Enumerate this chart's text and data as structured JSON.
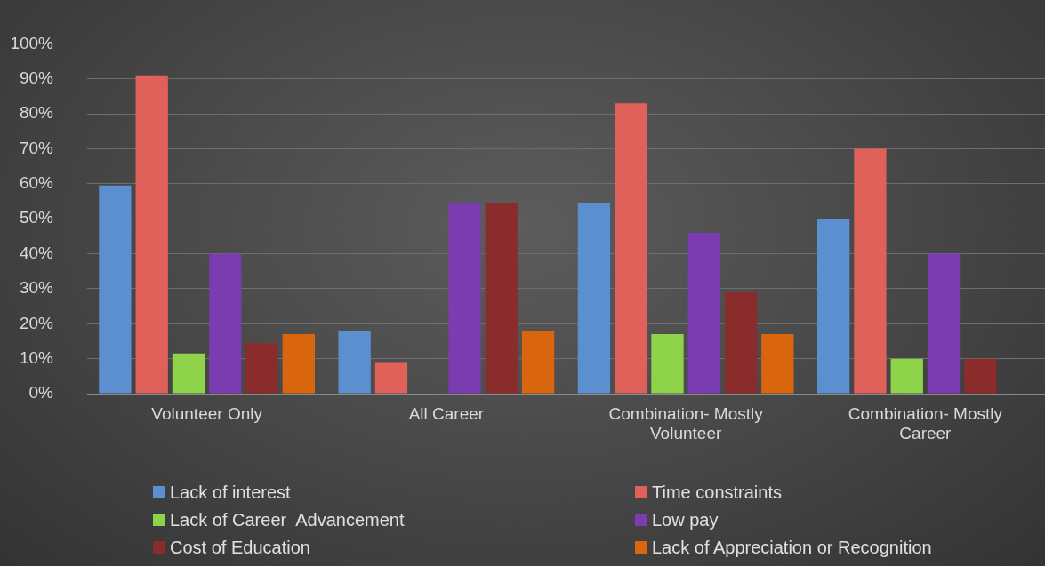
{
  "chart_data": {
    "type": "bar",
    "categories": [
      "Volunteer Only",
      "All Career",
      "Combination- Mostly Volunteer",
      "Combination- Mostly Career"
    ],
    "series": [
      {
        "name": "Lack of interest",
        "color": "#5b8fd0",
        "values": [
          59.5,
          18,
          54.5,
          50
        ]
      },
      {
        "name": "Time constraints",
        "color": "#e0605a",
        "values": [
          91,
          9,
          83,
          70
        ]
      },
      {
        "name": "Lack of Career  Advancement",
        "color": "#8ed34a",
        "values": [
          11.5,
          0,
          17,
          10
        ]
      },
      {
        "name": "Low pay",
        "color": "#7a3cb0",
        "values": [
          40,
          54.5,
          46,
          40
        ]
      },
      {
        "name": "Cost of Education",
        "color": "#8b2c2c",
        "values": [
          14.5,
          54.5,
          29,
          10
        ]
      },
      {
        "name": "Lack of Appreciation or Recognition",
        "color": "#d9650f",
        "values": [
          17,
          18,
          17,
          0
        ]
      }
    ],
    "ylim": [
      0,
      100
    ],
    "yticks": [
      {
        "value": 0,
        "label": "0%"
      },
      {
        "value": 10,
        "label": "10%"
      },
      {
        "value": 20,
        "label": "20%"
      },
      {
        "value": 30,
        "label": "30%"
      },
      {
        "value": 40,
        "label": "40%"
      },
      {
        "value": 50,
        "label": "50%"
      },
      {
        "value": 60,
        "label": "60%"
      },
      {
        "value": 70,
        "label": "70%"
      },
      {
        "value": 80,
        "label": "80%"
      },
      {
        "value": 90,
        "label": "90%"
      },
      {
        "value": 100,
        "label": "100%"
      }
    ],
    "grid": "y",
    "legend": "bottom"
  }
}
